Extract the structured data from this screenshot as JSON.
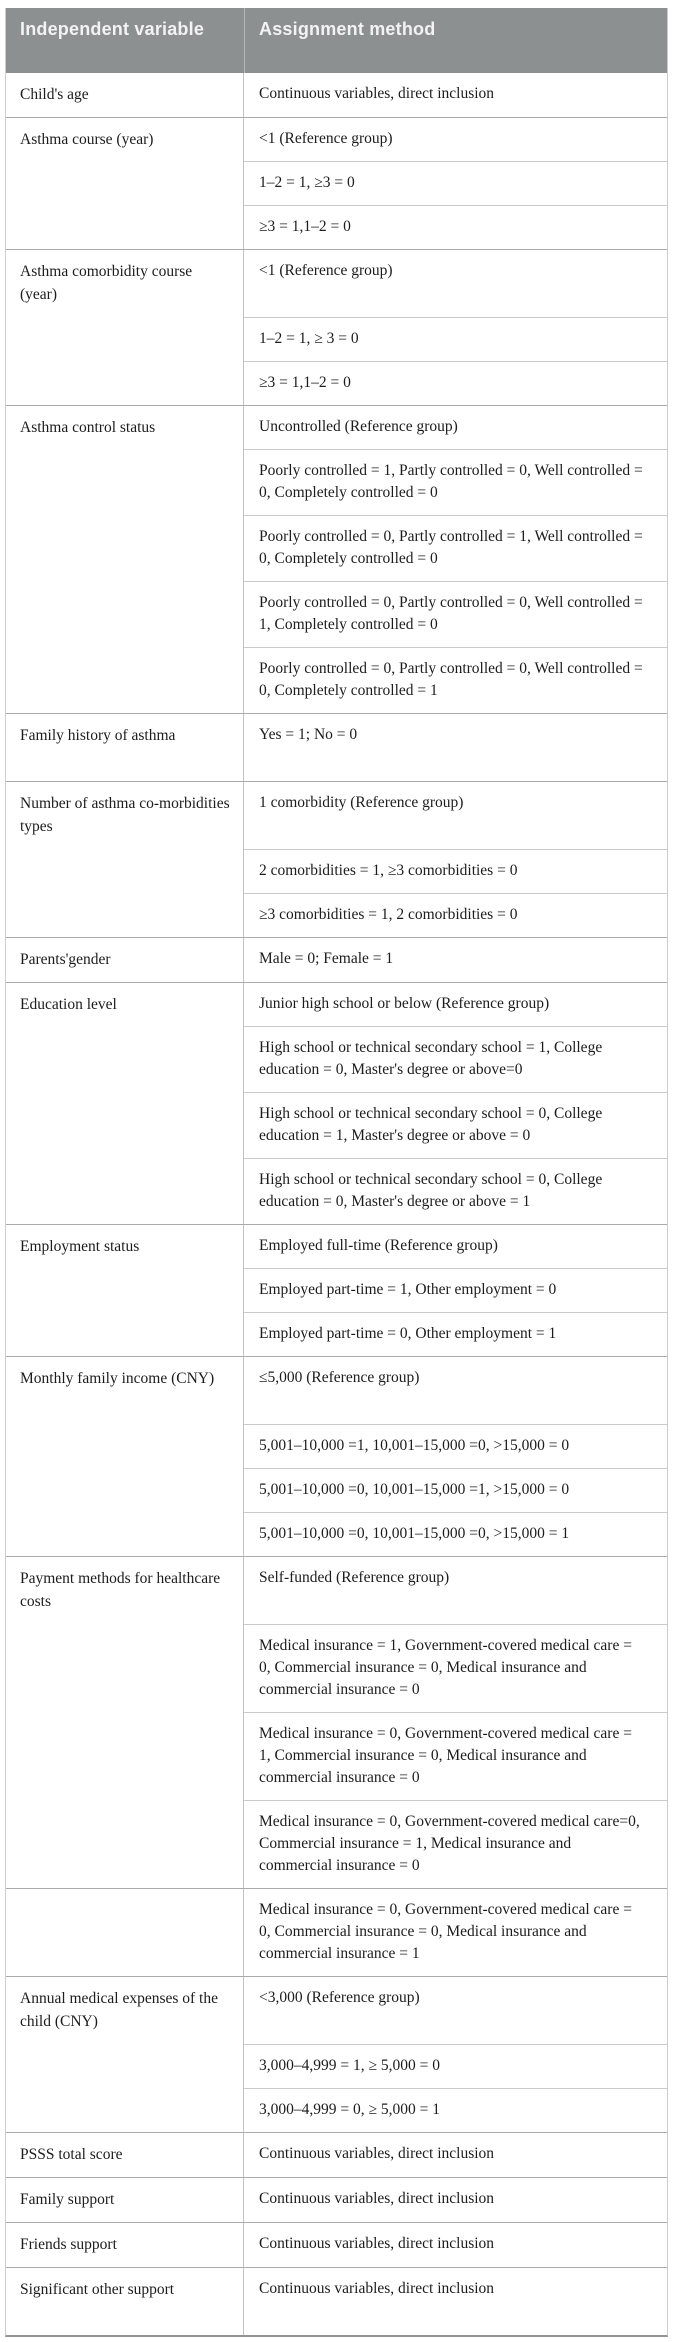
{
  "colors": {
    "header_bg": "#8c9091",
    "header_text": "#f2f3f3",
    "body_text": "#1c1c1c",
    "subrow_line": "#c9caca",
    "group_line": "#a9abab",
    "outer_border": "#939595"
  },
  "table": {
    "header": {
      "col1": "Independent variable",
      "col2": "Assignment method"
    },
    "groups": [
      {
        "variable": "Child's age",
        "methods": [
          "Continuous variables, direct inclusion"
        ]
      },
      {
        "variable": "Asthma course (year)",
        "methods": [
          "<1 (Reference group)",
          "1–2 = 1, ≥3 = 0",
          "≥3 = 1,1–2 = 0"
        ]
      },
      {
        "variable": "Asthma comorbidity course (year)",
        "methods": [
          "<1 (Reference group)",
          "1–2 = 1, ≥ 3 = 0",
          "≥3 = 1,1–2 = 0"
        ]
      },
      {
        "variable": "Asthma control status",
        "methods": [
          "Uncontrolled (Reference group)",
          "Poorly controlled = 1, Partly controlled = 0, Well controlled = 0, Completely controlled = 0",
          "Poorly controlled = 0, Partly controlled = 1, Well controlled = 0, Completely controlled = 0",
          "Poorly controlled = 0, Partly controlled = 0, Well controlled = 1, Completely controlled = 0",
          "Poorly controlled = 0, Partly controlled = 0, Well controlled = 0, Completely controlled = 1"
        ]
      },
      {
        "variable": "Family history of asthma",
        "methods": [
          "Yes = 1; No = 0"
        ]
      },
      {
        "variable": "Number of asthma co-morbidities types",
        "methods": [
          "1 comorbidity (Reference group)",
          "2 comorbidities = 1, ≥3 comorbidities = 0",
          "≥3 comorbidities = 1, 2 comorbidities = 0"
        ]
      },
      {
        "variable": "Parents'gender",
        "methods": [
          "Male = 0; Female = 1"
        ]
      },
      {
        "variable": "Education level",
        "methods": [
          "Junior high school or below (Reference group)",
          "High school or technical secondary school = 1, College education = 0, Master's degree or above=0",
          "High school or technical secondary school = 0, College education = 1, Master's degree or above = 0",
          "High school or technical secondary school = 0, College education = 0, Master's degree or above = 1"
        ]
      },
      {
        "variable": "Employment status",
        "methods": [
          "Employed full-time (Reference group)",
          "Employed part-time = 1, Other employment = 0",
          "Employed part-time = 0, Other employment = 1"
        ]
      },
      {
        "variable": "Monthly family income (CNY)",
        "methods": [
          "≤5,000 (Reference group)",
          "5,001–10,000 =1, 10,001–15,000 =0, >15,000 = 0",
          "5,001–10,000 =0, 10,001–15,000 =1, >15,000 = 0",
          "5,001–10,000 =0, 10,001–15,000 =0, >15,000 = 1"
        ]
      },
      {
        "variable": "Payment methods for healthcare costs",
        "methods": [
          "Self-funded (Reference group)",
          "Medical insurance = 1, Government-covered medical care = 0, Commercial insurance = 0, Medical insurance and commercial insurance = 0",
          "Medical insurance = 0, Government-covered medical care = 1, Commercial insurance = 0, Medical insurance and commercial insurance = 0",
          "Medical insurance = 0, Government-covered medical care=0, Commercial insurance = 1, Medical insurance and commercial insurance = 0"
        ]
      },
      {
        "variable": "",
        "methods": [
          "Medical insurance = 0, Government-covered medical care = 0, Commercial insurance = 0, Medical insurance and commercial insurance = 1"
        ]
      },
      {
        "variable": "Annual medical expenses of the child (CNY)",
        "methods": [
          "<3,000 (Reference group)",
          "3,000–4,999 = 1, ≥ 5,000 = 0",
          "3,000–4,999 = 0, ≥ 5,000 = 1"
        ]
      },
      {
        "variable": "PSSS total score",
        "methods": [
          "Continuous variables, direct inclusion"
        ]
      },
      {
        "variable": "Family support",
        "methods": [
          "Continuous variables, direct inclusion"
        ]
      },
      {
        "variable": "Friends support",
        "methods": [
          "Continuous variables, direct inclusion"
        ]
      },
      {
        "variable": "Significant other support",
        "methods": [
          "Continuous variables, direct inclusion"
        ]
      }
    ]
  }
}
